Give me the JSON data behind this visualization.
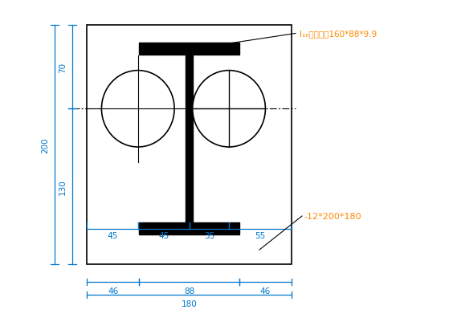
{
  "bg_color": "#ffffff",
  "line_color": "#000000",
  "dim_color": "#0077cc",
  "annotation_color": "#ff8800",
  "label_I16": "I₁₆工字钙为160*88*9.9",
  "label_plate": "-12*200*180",
  "dim_top": "70",
  "dim_mid": "200",
  "dim_bot": "130",
  "dim_b1": "46",
  "dim_b2": "88",
  "dim_b3": "46",
  "dim_total": "180",
  "dim_45a": "45",
  "dim_45b": "45",
  "dim_35": "35",
  "dim_55": "55"
}
